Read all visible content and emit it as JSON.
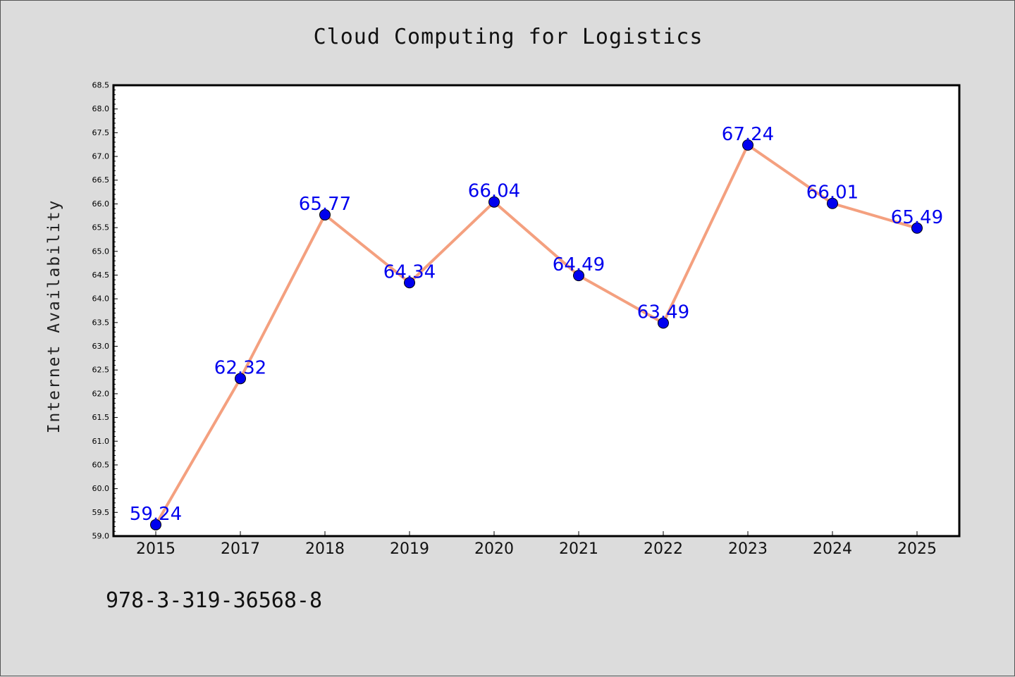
{
  "chart_data": {
    "type": "line",
    "title": "Cloud Computing for Logistics",
    "xlabel": "",
    "ylabel": "Internet Availability",
    "categories": [
      "2015",
      "2017",
      "2018",
      "2019",
      "2020",
      "2021",
      "2022",
      "2023",
      "2024",
      "2025"
    ],
    "series": [
      {
        "values": [
          59.24,
          62.32,
          65.77,
          64.34,
          66.04,
          64.49,
          63.49,
          67.24,
          66.01,
          65.49
        ],
        "data_labels": [
          "59.24",
          "62.32",
          "65.77",
          "64.34",
          "66.04",
          "64.49",
          "63.49",
          "67.24",
          "66.01",
          "65.49"
        ],
        "line_color": "#f4a07f",
        "marker_color": "#0000ee",
        "label_color": "#0000ee"
      }
    ],
    "ylim": [
      59.0,
      68.5
    ],
    "yticks": [
      "59.0",
      "59.5",
      "60.0",
      "60.5",
      "61.0",
      "61.5",
      "62.0",
      "62.5",
      "63.0",
      "63.5",
      "64.0",
      "64.5",
      "65.0",
      "65.5",
      "66.0",
      "66.5",
      "67.0",
      "67.5",
      "68.0",
      "68.5"
    ],
    "grid": false,
    "legend": "none"
  },
  "footer_text": "978-3-319-36568-8",
  "colors": {
    "background": "#dcdcdc",
    "plot_background": "#ffffff",
    "line": "#f4a07f",
    "marker": "#0000ee",
    "data_label": "#0000ee"
  }
}
